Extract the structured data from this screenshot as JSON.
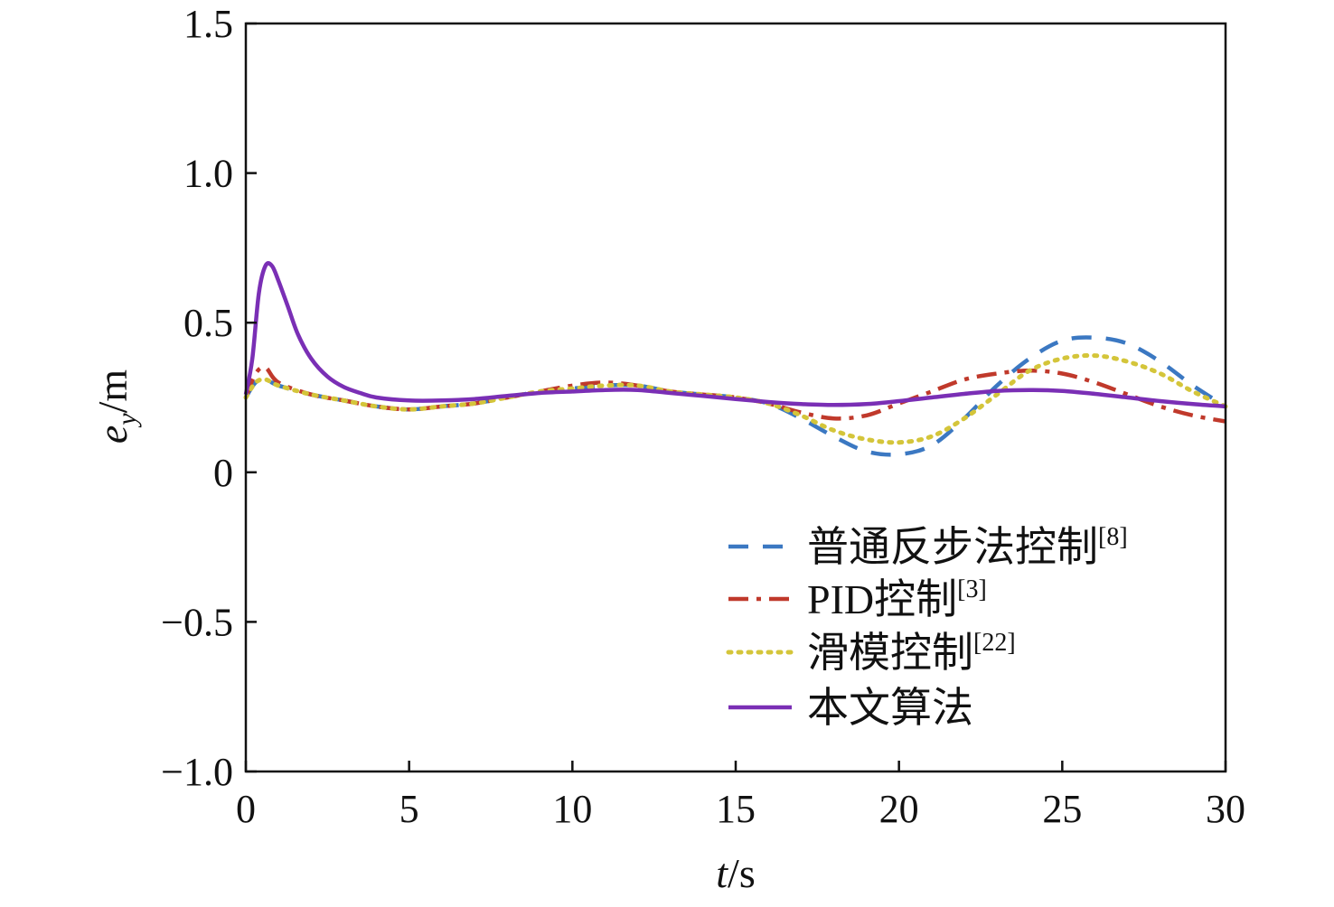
{
  "chart_data": {
    "type": "line",
    "xlabel": "t/s",
    "ylabel": "e_y/m",
    "xlim": [
      0,
      30
    ],
    "ylim": [
      -1.0,
      1.5
    ],
    "xticks": [
      "0",
      "5",
      "10",
      "15",
      "20",
      "25",
      "30"
    ],
    "yticks": [
      "−1.0",
      "−0.5",
      "0",
      "0.5",
      "1.0",
      "1.5"
    ],
    "grid": false,
    "legend_position": "lower-right",
    "series": [
      {
        "name": "普通反步法控制",
        "ref": "[8]",
        "style": "dashed",
        "color": "#3b78c2",
        "x": [
          0,
          0.3,
          0.6,
          1,
          2,
          3,
          4,
          5,
          6,
          7,
          8,
          9,
          10,
          11,
          12,
          13,
          14,
          15,
          16,
          17,
          18,
          19,
          20,
          21,
          22,
          23,
          24,
          25,
          26,
          27,
          28,
          29,
          30
        ],
        "y": [
          0.25,
          0.3,
          0.31,
          0.29,
          0.26,
          0.24,
          0.22,
          0.21,
          0.22,
          0.23,
          0.25,
          0.27,
          0.28,
          0.29,
          0.29,
          0.27,
          0.26,
          0.25,
          0.23,
          0.18,
          0.12,
          0.07,
          0.06,
          0.09,
          0.18,
          0.29,
          0.38,
          0.44,
          0.45,
          0.43,
          0.37,
          0.29,
          0.22
        ]
      },
      {
        "name": "PID控制",
        "ref": "[3]",
        "style": "dashdot",
        "color": "#c0392b",
        "x": [
          0,
          0.3,
          0.6,
          1,
          2,
          3,
          4,
          5,
          6,
          7,
          8,
          9,
          10,
          11,
          12,
          13,
          14,
          15,
          16,
          17,
          18,
          19,
          20,
          21,
          22,
          23,
          24,
          25,
          26,
          27,
          28,
          29,
          30
        ],
        "y": [
          0.25,
          0.33,
          0.35,
          0.3,
          0.26,
          0.24,
          0.22,
          0.21,
          0.22,
          0.23,
          0.25,
          0.27,
          0.29,
          0.3,
          0.29,
          0.27,
          0.26,
          0.25,
          0.23,
          0.2,
          0.18,
          0.19,
          0.23,
          0.27,
          0.31,
          0.33,
          0.34,
          0.33,
          0.3,
          0.26,
          0.22,
          0.19,
          0.17
        ]
      },
      {
        "name": "滑模控制",
        "ref": "[22]",
        "style": "dotted",
        "color": "#d4c53a",
        "x": [
          0,
          0.3,
          0.6,
          1,
          2,
          3,
          4,
          5,
          6,
          7,
          8,
          9,
          10,
          11,
          12,
          13,
          14,
          15,
          16,
          17,
          18,
          19,
          20,
          21,
          22,
          23,
          24,
          25,
          26,
          27,
          28,
          29,
          30
        ],
        "y": [
          0.25,
          0.3,
          0.31,
          0.29,
          0.26,
          0.24,
          0.22,
          0.21,
          0.22,
          0.23,
          0.25,
          0.27,
          0.28,
          0.29,
          0.29,
          0.27,
          0.26,
          0.25,
          0.23,
          0.19,
          0.14,
          0.11,
          0.1,
          0.12,
          0.18,
          0.26,
          0.34,
          0.38,
          0.39,
          0.37,
          0.33,
          0.27,
          0.22
        ]
      },
      {
        "name": "本文算法",
        "ref": "",
        "style": "solid",
        "color": "#7a2fb5",
        "x": [
          0,
          0.2,
          0.4,
          0.6,
          0.8,
          1,
          1.3,
          1.6,
          2,
          2.5,
          3,
          3.5,
          4,
          5,
          6,
          7,
          8,
          9,
          10,
          11,
          12,
          13,
          14,
          15,
          16,
          17,
          18,
          19,
          20,
          21,
          22,
          23,
          24,
          25,
          26,
          27,
          28,
          29,
          30
        ],
        "y": [
          0.26,
          0.38,
          0.6,
          0.69,
          0.69,
          0.64,
          0.55,
          0.46,
          0.38,
          0.32,
          0.285,
          0.265,
          0.25,
          0.24,
          0.24,
          0.245,
          0.255,
          0.265,
          0.27,
          0.275,
          0.275,
          0.265,
          0.255,
          0.245,
          0.235,
          0.228,
          0.225,
          0.228,
          0.238,
          0.25,
          0.262,
          0.272,
          0.275,
          0.272,
          0.262,
          0.25,
          0.238,
          0.228,
          0.22
        ]
      }
    ]
  }
}
